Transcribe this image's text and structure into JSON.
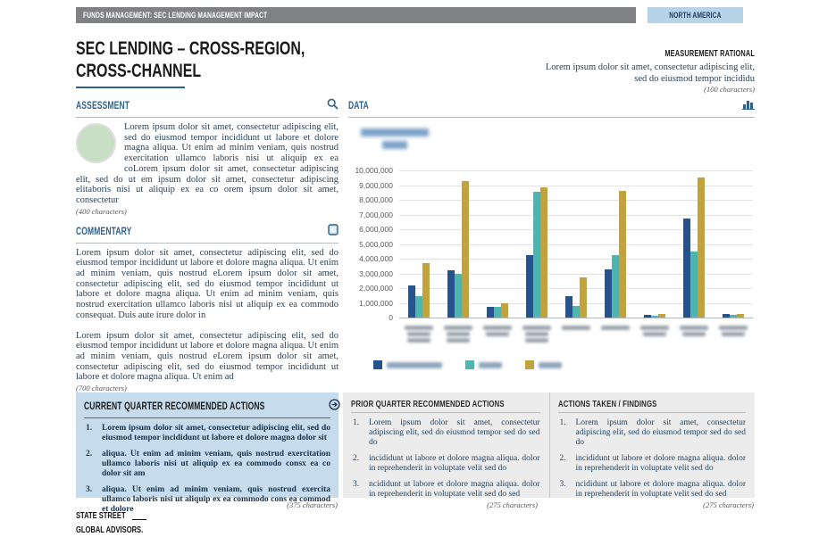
{
  "topbar": {
    "title": "FUNDS MANAGEMENT: SEC LENDING MANAGEMENT IMPACT",
    "region": "NORTH AMERICA"
  },
  "page": {
    "title_line1": "SEC LENDING – CROSS-REGION,",
    "title_line2": "CROSS-CHANNEL"
  },
  "measurement": {
    "header": "MEASUREMENT RATIONAL",
    "body": "Lorem ipsum dolor sit amet, consectetur adipiscing elit, sed do eiusmod tempor incididu",
    "caption": "(100 characters)"
  },
  "assessment": {
    "header": "ASSESSMENT",
    "body": "Lorem ipsum dolor sit amet, consectetur adipiscing elit, sed do eiusmod tempor incididunt ut labore et dolore magna aliqua. Ut enim ad minim veniam, quis nostrud exercitation ullamco laboris nisi ut aliquip ex ea coLorem ipsum dolor sit amet, consectetur adipiscing elit, sed do ut em ipsum dolor sit amet, consectetur adipiscing elitaboris nisi ut aliquip ex ea co orem ipsum dolor sit amet, consectetur",
    "caption": "(400 characters)"
  },
  "commentary": {
    "header": "COMMENTARY",
    "p1": "Lorem ipsum dolor sit amet, consectetur adipiscing elit, sed do eiusmod tempor incididunt ut labore et dolore magna aliqua. Ut enim ad minim veniam, quis nostrud eLorem ipsum dolor sit amet, consectetur adipiscing elit, sed do eiusmod tempor incididunt ut labore et dolore magna aliqua. Ut enim ad minim veniam, quis nostrud exercitation ullamco laboris nisi ut aliquip ex ea commodo consequat. Duis aute irure dolor in",
    "p2": "Lorem ipsum dolor sit amet, consectetur adipiscing elit, sed do eiusmod tempor incididunt ut labore et dolore magna aliqua. Ut enim ad minim veniam, quis nostrud eLorem ipsum dolor sit amet, consectetur adipiscing elit, sed do eiusmod tempor incididunt ut labore et dolore magna aliqua. Ut enim ad",
    "caption": "(700 characters)"
  },
  "data_section": {
    "header": "DATA"
  },
  "chart_data": {
    "type": "bar",
    "title": "",
    "title_redacted": true,
    "ylim": [
      0,
      10000000
    ],
    "grid": true,
    "legend_position": "bottom",
    "y_ticks": [
      "10,000,000",
      "9,000,000",
      "8,000,000",
      "7,000,000",
      "6,000,000",
      "5,000,000",
      "4,000,000",
      "3,000,000",
      "2,000,000",
      "1,000,000",
      "0"
    ],
    "categories_redacted": true,
    "x_label_line_counts": [
      3,
      3,
      2,
      3,
      1,
      1,
      2,
      2,
      2
    ],
    "series": [
      {
        "name": "",
        "name_redacted": true,
        "color": "#26538e",
        "values": [
          2200000,
          3200000,
          700000,
          4250000,
          1450000,
          3300000,
          200000,
          6700000,
          250000
        ]
      },
      {
        "name": "",
        "name_redacted": true,
        "color": "#4fb5b1",
        "values": [
          1450000,
          3000000,
          720000,
          8550000,
          800000,
          4250000,
          150000,
          4500000,
          200000
        ]
      },
      {
        "name": "",
        "name_redacted": true,
        "color": "#c2a23d",
        "values": [
          3700000,
          9250000,
          1000000,
          8850000,
          2700000,
          8600000,
          250000,
          9500000,
          250000
        ]
      }
    ],
    "legend_label_widths": [
      62,
      26,
      26
    ]
  },
  "current": {
    "header": "CURRENT QUARTER RECOMMENDED ACTIONS",
    "items": [
      "Lorem ipsum dolor sit amet, consectetur adipiscing elit, sed do eiusmod tempor incididunt ut labore et dolore magna dolor sit",
      "aliqua. Ut enim ad minim veniam, quis nostrud exercitation ullamco laboris nisi ut aliquip ex ea commodo consx ea co dolor sit am",
      "aliqua. Ut enim ad minim veniam, quis nostrud exercita ullamco laboris nisi ut aliquip ex ea commodo cons ea commod et dolore"
    ],
    "caption": "(375 characters)"
  },
  "prior": {
    "header": "PRIOR QUARTER RECOMMENDED ACTIONS",
    "items": [
      "Lorem ipsum dolor sit amet, consectetur adipiscing elit, sed do eiusmod tempor sed do sed do",
      "incididunt ut labore et dolore magna aliqua. dolor in reprehenderit in voluptate velit sed do",
      "ncididunt ut labore et dolore magna aliqua. dolor in reprehenderit in voluptate velit sed do sed"
    ],
    "caption": "(275 characters)"
  },
  "actions_taken": {
    "header": "ACTIONS TAKEN / FINDINGS",
    "items": [
      "Lorem ipsum dolor sit amet, consectetur adipiscing elit, sed do eiusmod tempor sed do sed do",
      "incididunt ut labore et dolore magna aliqua. dolor in reprehenderit in voluptate velit sed do",
      "ncididunt ut labore et dolore magna aliqua. dolor in reprehenderit in voluptate velit sed do sed"
    ],
    "caption": "(275 characters)"
  },
  "logo": {
    "line1": "STATE STREET",
    "line2": "GLOBAL ADVISORS."
  }
}
